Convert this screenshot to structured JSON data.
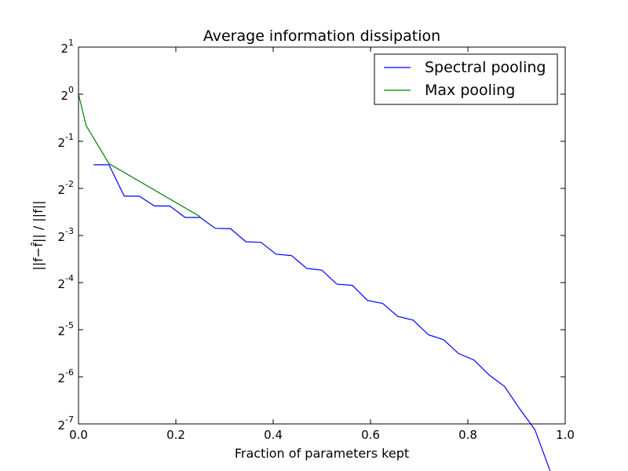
{
  "chart_data": {
    "type": "line",
    "title": "Average information dissipation",
    "xlabel": "Fraction of parameters kept",
    "ylabel": "||f−f̂|| / ||f||",
    "xlim": [
      0.0,
      1.0
    ],
    "ylim": [
      0.0078125,
      2
    ],
    "yscale": "log2",
    "x_ticks": [
      0.0,
      0.2,
      0.4,
      0.6,
      0.8,
      1.0
    ],
    "x_tick_labels": [
      "0.0",
      "0.2",
      "0.4",
      "0.6",
      "0.8",
      "1.0"
    ],
    "y_ticks": [
      {
        "value": 2,
        "base": "2",
        "exp": "1"
      },
      {
        "value": 1,
        "base": "2",
        "exp": "0"
      },
      {
        "value": 0.5,
        "base": "2",
        "exp": "-1"
      },
      {
        "value": 0.25,
        "base": "2",
        "exp": "-2"
      },
      {
        "value": 0.125,
        "base": "2",
        "exp": "-3"
      },
      {
        "value": 0.0625,
        "base": "2",
        "exp": "-4"
      },
      {
        "value": 0.03125,
        "base": "2",
        "exp": "-5"
      },
      {
        "value": 0.015625,
        "base": "2",
        "exp": "-6"
      },
      {
        "value": 0.0078125,
        "base": "2",
        "exp": "-7"
      }
    ],
    "grid": false,
    "legend_position": "top-right",
    "series": [
      {
        "name": "Spectral pooling",
        "color": "#0000ff",
        "points": [
          [
            0.031,
            0.354
          ],
          [
            0.0625,
            0.354
          ],
          [
            0.094,
            0.223
          ],
          [
            0.125,
            0.223
          ],
          [
            0.156,
            0.193
          ],
          [
            0.1875,
            0.193
          ],
          [
            0.219,
            0.163
          ],
          [
            0.25,
            0.163
          ],
          [
            0.281,
            0.139
          ],
          [
            0.3125,
            0.138
          ],
          [
            0.344,
            0.114
          ],
          [
            0.375,
            0.113
          ],
          [
            0.406,
            0.095
          ],
          [
            0.4375,
            0.093
          ],
          [
            0.469,
            0.077
          ],
          [
            0.5,
            0.075
          ],
          [
            0.531,
            0.061
          ],
          [
            0.5625,
            0.06
          ],
          [
            0.594,
            0.048
          ],
          [
            0.625,
            0.046
          ],
          [
            0.656,
            0.038
          ],
          [
            0.6875,
            0.036
          ],
          [
            0.719,
            0.029
          ],
          [
            0.75,
            0.027
          ],
          [
            0.781,
            0.022
          ],
          [
            0.8125,
            0.02
          ],
          [
            0.844,
            0.016
          ],
          [
            0.875,
            0.0136
          ],
          [
            0.906,
            0.0098
          ],
          [
            0.9375,
            0.0072
          ],
          [
            0.969,
            0.00391
          ]
        ]
      },
      {
        "name": "Max pooling",
        "color": "#008000",
        "points": [
          [
            0.0,
            1.0
          ],
          [
            0.0156,
            0.63
          ],
          [
            0.0625,
            0.36
          ],
          [
            0.25,
            0.165
          ]
        ]
      }
    ]
  }
}
